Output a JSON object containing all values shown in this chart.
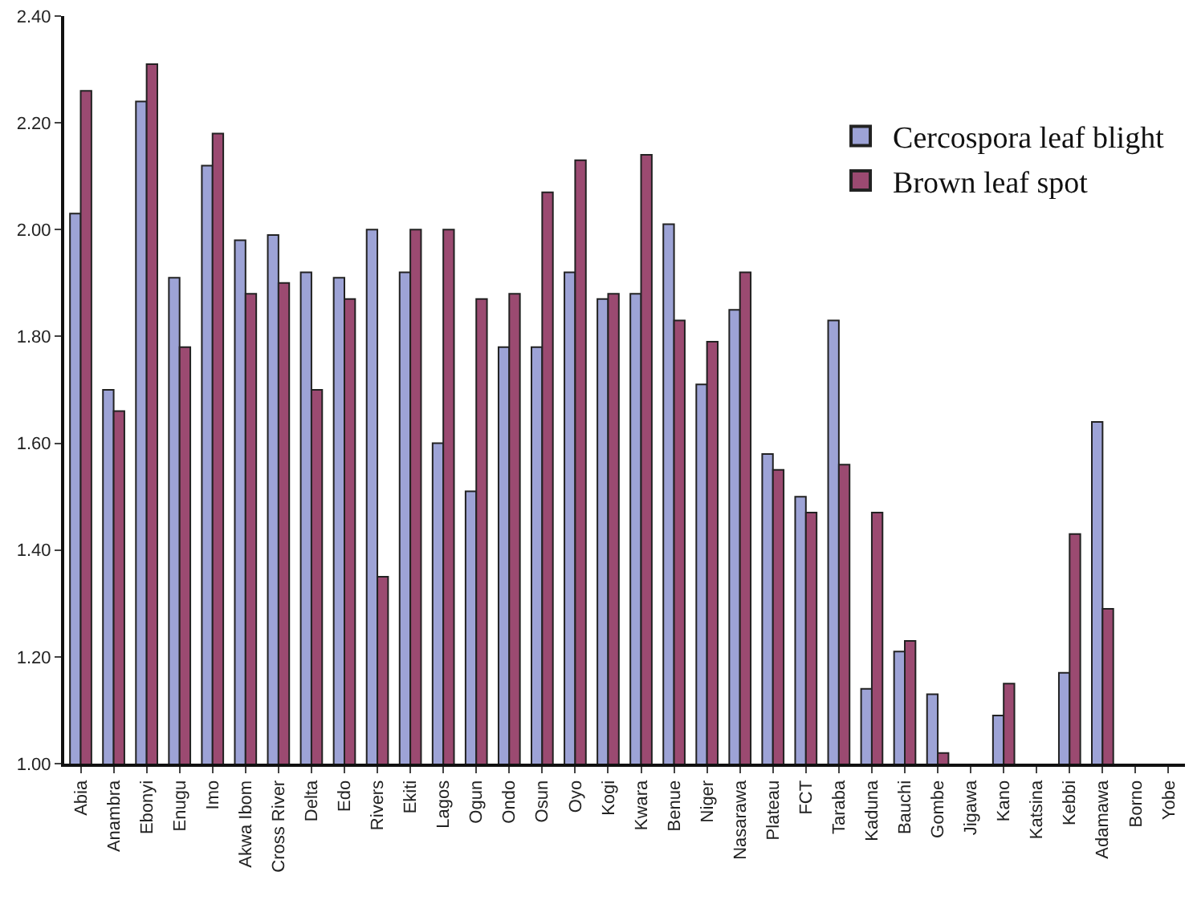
{
  "chart_data": {
    "type": "bar",
    "categories": [
      "Abia",
      "Anambra",
      "Ebonyi",
      "Enugu",
      "Imo",
      "Akwa Ibom",
      "Cross River",
      "Delta",
      "Edo",
      "Rivers",
      "Ekiti",
      "Lagos",
      "Ogun",
      "Ondo",
      "Osun",
      "Oyo",
      "Kogi",
      "Kwara",
      "Benue",
      "Niger",
      "Nasarawa",
      "Plateau",
      "FCT",
      "Taraba",
      "Kaduna",
      "Bauchi",
      "Gombe",
      "Jigawa",
      "Kano",
      "Katsina",
      "Kebbi",
      "Adamawa",
      "Borno",
      "Yobe"
    ],
    "series": [
      {
        "name": "Cercospora leaf blight",
        "color": "#9da3d6",
        "values": [
          2.03,
          1.7,
          2.24,
          1.91,
          2.12,
          1.98,
          1.99,
          1.92,
          1.91,
          2.0,
          1.92,
          1.6,
          1.51,
          1.78,
          1.78,
          1.92,
          1.87,
          1.88,
          2.01,
          1.71,
          1.85,
          1.58,
          1.5,
          1.83,
          1.14,
          1.21,
          1.13,
          null,
          1.09,
          null,
          1.17,
          1.64,
          null,
          null
        ]
      },
      {
        "name": "Brown leaf spot",
        "color": "#9b4a71",
        "values": [
          2.26,
          1.66,
          2.31,
          1.78,
          2.18,
          1.88,
          1.9,
          1.7,
          1.87,
          1.35,
          2.0,
          2.0,
          1.87,
          1.88,
          2.07,
          2.13,
          1.88,
          2.14,
          1.83,
          1.79,
          1.92,
          1.55,
          1.47,
          1.56,
          1.47,
          1.23,
          1.02,
          null,
          1.15,
          null,
          1.43,
          1.29,
          null,
          null
        ]
      }
    ],
    "ylim": [
      1.0,
      2.4
    ],
    "yticks": [
      {
        "value": 1.0,
        "label": "1.00"
      },
      {
        "value": 1.2,
        "label": "1.20"
      },
      {
        "value": 1.4,
        "label": "1.40"
      },
      {
        "value": 1.6,
        "label": "1.60"
      },
      {
        "value": 1.8,
        "label": "1.80"
      },
      {
        "value": 2.0,
        "label": "2.00"
      },
      {
        "value": 2.2,
        "label": "2.20"
      },
      {
        "value": 2.4,
        "label": "2.40"
      }
    ],
    "grid": false,
    "legend": "top right"
  }
}
